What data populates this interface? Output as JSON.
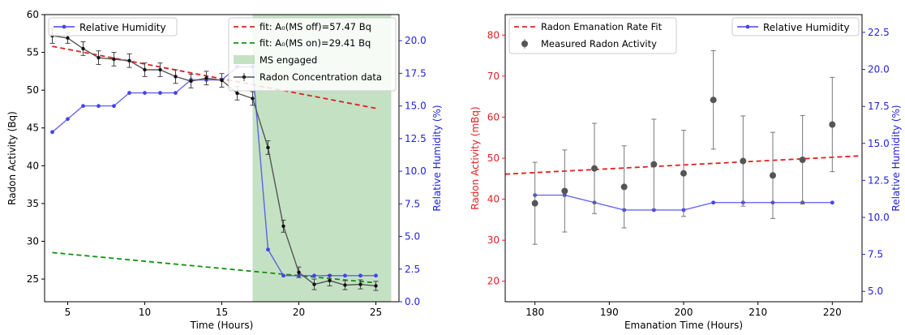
{
  "chart_data": [
    {
      "type": "line",
      "xlabel": "Time (Hours)",
      "ylabel_left": "Radon Activity (Bq)",
      "ylabel_right": "Relative Humidity (%)",
      "xlim": [
        3.5,
        26.5
      ],
      "ylim_left": [
        22,
        60
      ],
      "ylim_right": [
        0,
        22
      ],
      "x_ticks": [
        5,
        10,
        15,
        20,
        25
      ],
      "y_ticks_left": [
        25,
        30,
        35,
        40,
        45,
        50,
        55,
        60
      ],
      "y_ticks_right": [
        0.0,
        2.5,
        5.0,
        7.5,
        10.0,
        12.5,
        15.0,
        17.5,
        20.0
      ],
      "shaded_region": {
        "x0": 17,
        "x1": 26,
        "label": "MS engaged",
        "color": "#3a9a3a"
      },
      "radon": {
        "name": "Radon Concentration data",
        "color": "#000000",
        "x": [
          4,
          5,
          6,
          7,
          8,
          9,
          10,
          11,
          12,
          13,
          14,
          15,
          16,
          17,
          18,
          19,
          20,
          21,
          22,
          23,
          24,
          25
        ],
        "y": [
          57.2,
          56.9,
          55.5,
          54.3,
          54.1,
          53.9,
          52.7,
          52.7,
          51.8,
          51.2,
          51.6,
          51.3,
          49.6,
          48.9,
          42.4,
          32,
          25.9,
          24.3,
          24.8,
          24.2,
          24.3,
          24.1
        ],
        "err": [
          1.0,
          0.7,
          0.9,
          0.9,
          0.9,
          0.9,
          0.9,
          0.9,
          0.9,
          0.9,
          0.9,
          0.9,
          0.9,
          0.9,
          0.9,
          0.8,
          0.7,
          0.7,
          0.7,
          0.6,
          0.6,
          0.6
        ]
      },
      "humidity": {
        "name": "Relative Humidity",
        "color": "#4444ee",
        "x": [
          4,
          5,
          6,
          7,
          8,
          9,
          10,
          11,
          12,
          13,
          14,
          15,
          16,
          17,
          18,
          19,
          20,
          21,
          22,
          23,
          24,
          25
        ],
        "y": [
          13,
          14,
          15,
          15,
          15,
          16,
          16,
          16,
          16,
          17,
          17,
          17,
          18,
          18,
          4,
          2,
          2,
          2,
          2,
          2,
          2,
          2
        ]
      },
      "fits": [
        {
          "name": "fit: A₀(MS off)=57.47 Bq",
          "color": "#e02020",
          "x": [
            4,
            25
          ],
          "y": [
            55.8,
            47.6
          ]
        },
        {
          "name": "fit: A₀(MS on)=29.41 Bq",
          "color": "#109010",
          "x": [
            4,
            25
          ],
          "y": [
            28.5,
            24.5
          ]
        }
      ],
      "legend_left": [
        "Relative Humidity"
      ],
      "legend_right": [
        "fit: A₀(MS off)=57.47 Bq",
        "fit: A₀(MS on)=29.41 Bq",
        "MS engaged",
        "Radon Concentration data"
      ]
    },
    {
      "type": "scatter",
      "xlabel": "Emanation Time (Hours)",
      "ylabel_left": "Radon Activity (mBq)",
      "ylabel_right": "Relative Humidity (%)",
      "xlim": [
        176,
        224
      ],
      "ylim_left": [
        15,
        85
      ],
      "ylim_right": [
        4.3,
        23.7
      ],
      "x_ticks": [
        180,
        190,
        200,
        210,
        220
      ],
      "y_ticks_left": [
        20,
        30,
        40,
        50,
        60,
        70,
        80
      ],
      "y_ticks_right": [
        5.0,
        7.5,
        10.0,
        12.5,
        15.0,
        17.5,
        20.0,
        22.5
      ],
      "measured": {
        "name": "Measured Radon Activity",
        "color": "#555555",
        "x": [
          180,
          184,
          188,
          192,
          196,
          200,
          204,
          208,
          212,
          216,
          220
        ],
        "y": [
          39,
          42,
          47.5,
          43,
          48.5,
          46.3,
          64.2,
          49.3,
          45.8,
          49.6,
          58.2
        ],
        "err": [
          10,
          10,
          11,
          10,
          11,
          10.5,
          12,
          11,
          10.5,
          10.8,
          11.5
        ]
      },
      "humidity": {
        "name": "Relative Humidity",
        "color": "#4444ee",
        "x": [
          180,
          184,
          188,
          192,
          196,
          200,
          204,
          208,
          212,
          216,
          220
        ],
        "y": [
          11.5,
          11.5,
          11,
          10.5,
          10.5,
          10.5,
          11,
          11,
          11,
          11,
          11
        ]
      },
      "fit": {
        "name": "Radon Emanation Rate Fit",
        "color": "#e02020",
        "x": [
          176,
          224
        ],
        "y": [
          46.1,
          50.6
        ]
      },
      "legend_left": [
        "Radon Emanation Rate Fit",
        "Measured Radon Activity"
      ],
      "legend_right": [
        "Relative Humidity"
      ]
    }
  ]
}
